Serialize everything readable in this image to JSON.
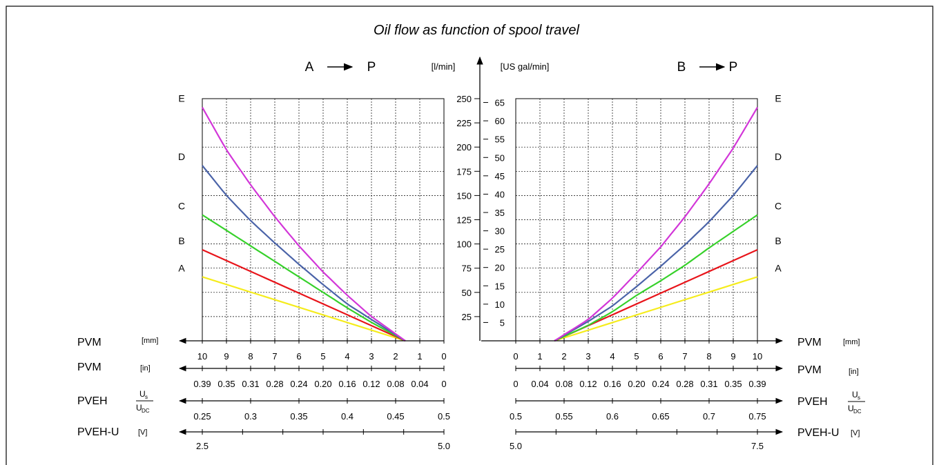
{
  "title": "Oil flow as function of spool travel",
  "left_panel": {
    "direction_from": "A",
    "direction_to": "P"
  },
  "right_panel": {
    "direction_from": "B",
    "direction_to": "P"
  },
  "center_axis": {
    "unit_lpm": "[l/min]",
    "unit_gpm": "[US gal/min]",
    "lpm_ticks": [
      "25",
      "50",
      "75",
      "100",
      "125",
      "150",
      "175",
      "200",
      "225",
      "250"
    ],
    "gpm_ticks": [
      "5",
      "10",
      "15",
      "20",
      "25",
      "30",
      "35",
      "40",
      "45",
      "50",
      "55",
      "60",
      "65"
    ]
  },
  "bottom_axes": {
    "pvm_mm": {
      "name": "PVM",
      "unit": "[mm]",
      "left_ticks": [
        "10",
        "9",
        "8",
        "7",
        "6",
        "5",
        "4",
        "3",
        "2",
        "1",
        "0"
      ],
      "right_ticks": [
        "0",
        "1",
        "2",
        "3",
        "4",
        "5",
        "6",
        "7",
        "8",
        "9",
        "10"
      ]
    },
    "pvm_in": {
      "name": "PVM",
      "unit": "[in]",
      "left_ticks": [
        "0.39",
        "0.35",
        "0.31",
        "0.28",
        "0.24",
        "0.20",
        "0.16",
        "0.12",
        "0.08",
        "0.04",
        "0"
      ],
      "right_ticks": [
        "0",
        "0.04",
        "0.08",
        "0.12",
        "0.16",
        "0.20",
        "0.24",
        "0.28",
        "0.31",
        "0.35",
        "0.39"
      ]
    },
    "pveh": {
      "name": "PVEH",
      "unit_num": "U",
      "unit_num_sub": "s",
      "unit_den": "U",
      "unit_den_sub": "DC",
      "left_ticks": [
        "0.25",
        "0.3",
        "0.35",
        "0.4",
        "0.45",
        "0.5"
      ],
      "right_ticks": [
        "0.5",
        "0.55",
        "0.6",
        "0.65",
        "0.7",
        "0.75"
      ]
    },
    "pveh_u": {
      "name": "PVEH-U",
      "unit": "[V]",
      "left_ticks": [
        "2.5",
        "5.0"
      ],
      "right_ticks": [
        "5.0",
        "7.5"
      ]
    }
  },
  "chart_data": {
    "type": "line",
    "title": "Oil flow as function of spool travel",
    "xlabel": "PVM [mm]",
    "ylabel": "[l/min]",
    "xlim": [
      0,
      10
    ],
    "ylim": [
      0,
      250
    ],
    "grid": true,
    "colors": {
      "A": "#f5ec1c",
      "B": "#e8141a",
      "C": "#36d12a",
      "D": "#4a63a8",
      "E": "#d236d8"
    },
    "panels": [
      {
        "direction": "A → P",
        "x_axis_reversed": true,
        "series": [
          {
            "name": "A",
            "x": [
              1.6,
              10
            ],
            "y": [
              0,
              66
            ]
          },
          {
            "name": "B",
            "x": [
              1.6,
              10
            ],
            "y": [
              0,
              94
            ]
          },
          {
            "name": "C",
            "x": [
              1.6,
              3,
              4,
              5,
              6,
              7,
              8,
              9,
              10
            ],
            "y": [
              0,
              19,
              34,
              50,
              66,
              82,
              98,
              114,
              130
            ]
          },
          {
            "name": "D",
            "x": [
              1.6,
              3,
              4,
              5,
              6,
              7,
              8,
              9,
              10
            ],
            "y": [
              0,
              22,
              38,
              58,
              79,
              101,
              124,
              150,
              181
            ]
          },
          {
            "name": "E",
            "x": [
              1.6,
              3,
              4,
              5,
              6,
              7,
              8,
              9,
              10
            ],
            "y": [
              0,
              25,
              47,
              71,
              98,
              128,
              161,
              197,
              241
            ]
          }
        ]
      },
      {
        "direction": "B → P",
        "x_axis_reversed": false,
        "series": [
          {
            "name": "A",
            "x": [
              1.6,
              10
            ],
            "y": [
              0,
              66
            ]
          },
          {
            "name": "B",
            "x": [
              1.6,
              10
            ],
            "y": [
              0,
              94
            ]
          },
          {
            "name": "C",
            "x": [
              1.6,
              3,
              4,
              5,
              6,
              7,
              8,
              9,
              10
            ],
            "y": [
              0,
              16,
              30,
              47,
              62,
              78,
              96,
              113,
              130
            ]
          },
          {
            "name": "D",
            "x": [
              1.6,
              3,
              4,
              5,
              6,
              7,
              8,
              9,
              10
            ],
            "y": [
              0,
              20,
              36,
              56,
              77,
              99,
              123,
              150,
              181
            ]
          },
          {
            "name": "E",
            "x": [
              1.6,
              3,
              4,
              5,
              6,
              7,
              8,
              9,
              10
            ],
            "y": [
              0,
              22,
              44,
              70,
              97,
              128,
              162,
              199,
              241
            ]
          }
        ]
      }
    ]
  }
}
